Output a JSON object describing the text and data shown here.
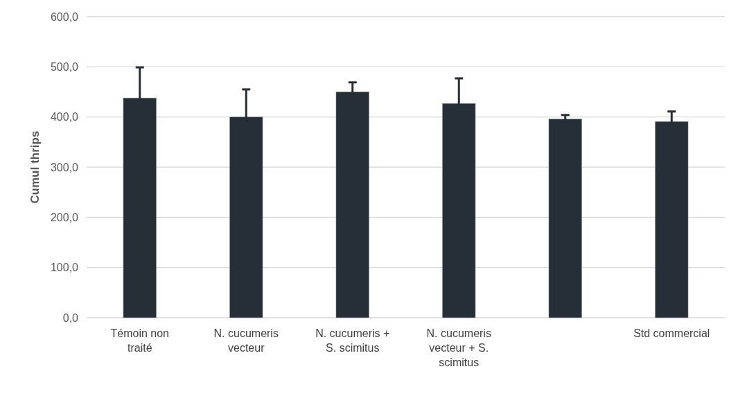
{
  "chart_data": {
    "type": "bar",
    "ylabel": "Cumul thrips",
    "categories": [
      "Témoin non traité",
      "N. cucumeris vecteur",
      "N. cucumeris + S. scimitus",
      "N. cucumeris vecteur + S. scimitus",
      null,
      "Std commercial"
    ],
    "values": [
      438,
      400,
      450,
      427,
      396,
      391
    ],
    "errors": [
      61,
      55,
      19,
      50,
      8,
      20
    ],
    "color": "#262e38",
    "ylim": [
      0,
      600
    ],
    "yticks": [
      {
        "value": 0,
        "label": "0,0"
      },
      {
        "value": 100,
        "label": "100,0"
      },
      {
        "value": 200,
        "label": "200,0"
      },
      {
        "value": 300,
        "label": "300,0"
      },
      {
        "value": 400,
        "label": "400,0"
      },
      {
        "value": 500,
        "label": "500,0"
      },
      {
        "value": 600,
        "label": "600,0"
      }
    ],
    "grid": "y"
  }
}
